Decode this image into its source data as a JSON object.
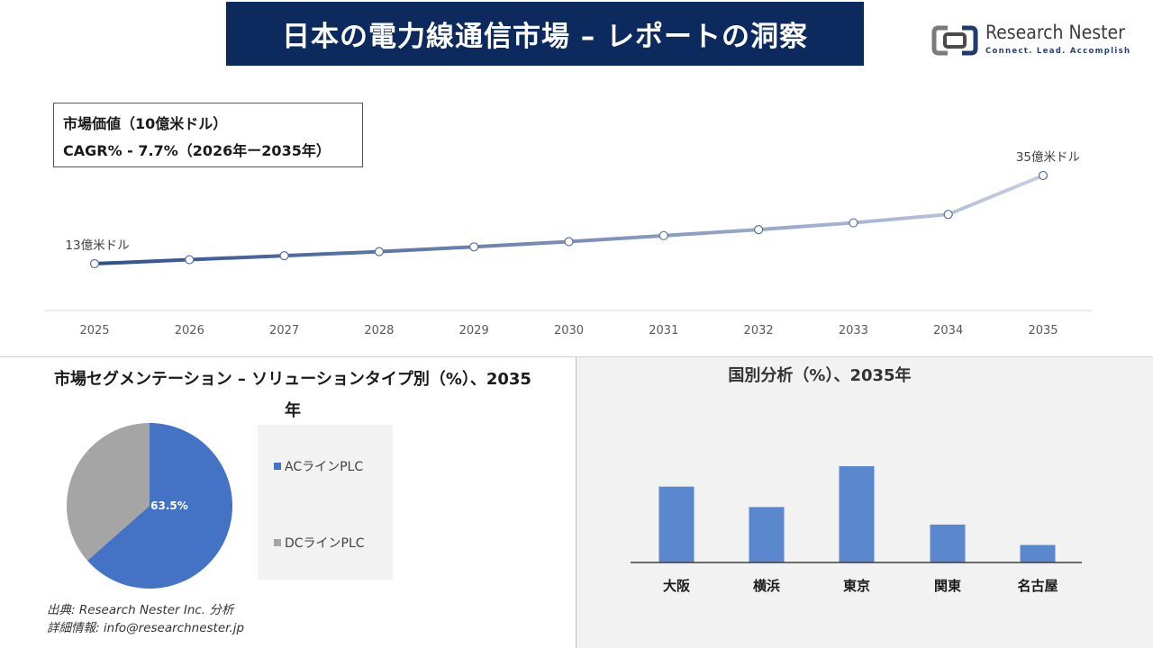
{
  "header": {
    "title": "日本の電力線通信市場 – レポートの洞察",
    "logo_name": "Research Nester",
    "logo_tagline": "Connect. Lead. Accomplish"
  },
  "info_box": {
    "line1": "市場価値（10億米ドル）",
    "line2": "CAGR% - 7.7%（2026年ー2035年）"
  },
  "colors": {
    "banner": "#0d2a5e",
    "line_start": "#2f4f8f",
    "line_end": "#c5cde0",
    "pie_ac": "#4472c4",
    "pie_dc": "#a5a5a5",
    "bar": "#5b87cf"
  },
  "chart_data": [
    {
      "type": "line",
      "x": [
        "2025",
        "2026",
        "2027",
        "2028",
        "2029",
        "2030",
        "2031",
        "2032",
        "2033",
        "2034",
        "2035"
      ],
      "values": [
        1.3,
        1.4,
        1.5,
        1.6,
        1.72,
        1.85,
        2.0,
        2.15,
        2.32,
        2.53,
        3.5
      ],
      "annotations": [
        {
          "x": "2025",
          "label": "13億米ドル"
        },
        {
          "x": "2035",
          "label": "35億米ドル"
        }
      ]
    },
    {
      "type": "pie",
      "title": "市場セグメンテーション – ソリューションタイプ別（%）、2035年",
      "slices": [
        {
          "name": "ACラインPLC",
          "value": 63.5,
          "label": "63.5%"
        },
        {
          "name": "DCラインPLC",
          "value": 36.5
        }
      ]
    },
    {
      "type": "bar",
      "title": "国別分析（%）、2035年",
      "categories": [
        "大阪",
        "横浜",
        "東京",
        "関東",
        "名古屋"
      ],
      "values": [
        26,
        19,
        33,
        13,
        6
      ]
    }
  ],
  "source": {
    "line1": "出典: Research Nester Inc. 分析",
    "line2": "詳細情報: info@researchnester.jp"
  }
}
